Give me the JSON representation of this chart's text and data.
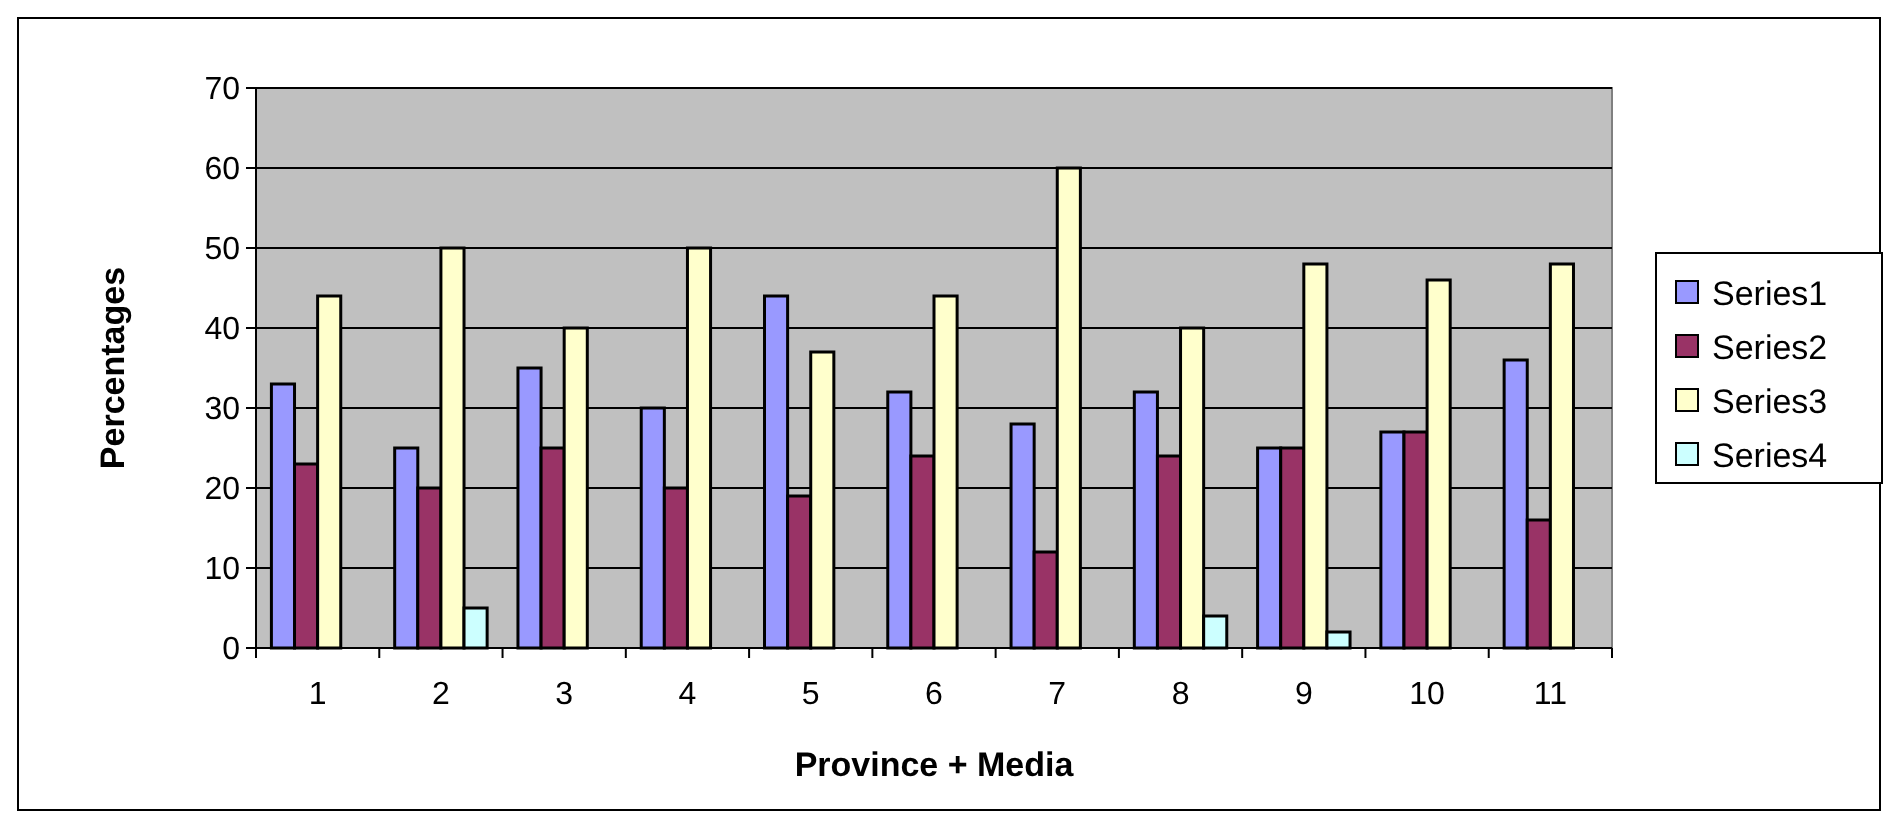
{
  "chart_data": {
    "type": "bar",
    "xlabel": "Province + Media",
    "ylabel": "Percentages",
    "categories": [
      "1",
      "2",
      "3",
      "4",
      "5",
      "6",
      "7",
      "8",
      "9",
      "10",
      "11"
    ],
    "series": [
      {
        "name": "Series1",
        "color": "#9999ff",
        "values": [
          33,
          25,
          35,
          30,
          44,
          32,
          28,
          32,
          25,
          27,
          36
        ]
      },
      {
        "name": "Series2",
        "color": "#993366",
        "values": [
          23,
          20,
          25,
          20,
          19,
          24,
          12,
          24,
          25,
          27,
          16
        ]
      },
      {
        "name": "Series3",
        "color": "#ffffcc",
        "values": [
          44,
          50,
          40,
          50,
          37,
          44,
          60,
          40,
          48,
          46,
          48
        ]
      },
      {
        "name": "Series4",
        "color": "#ccffff",
        "values": [
          null,
          5,
          null,
          null,
          null,
          null,
          null,
          4,
          2,
          null,
          null
        ]
      }
    ],
    "ylim": [
      0,
      70
    ],
    "yticks": [
      0,
      10,
      20,
      30,
      40,
      50,
      60,
      70
    ],
    "grid": "y",
    "legend": "right"
  }
}
